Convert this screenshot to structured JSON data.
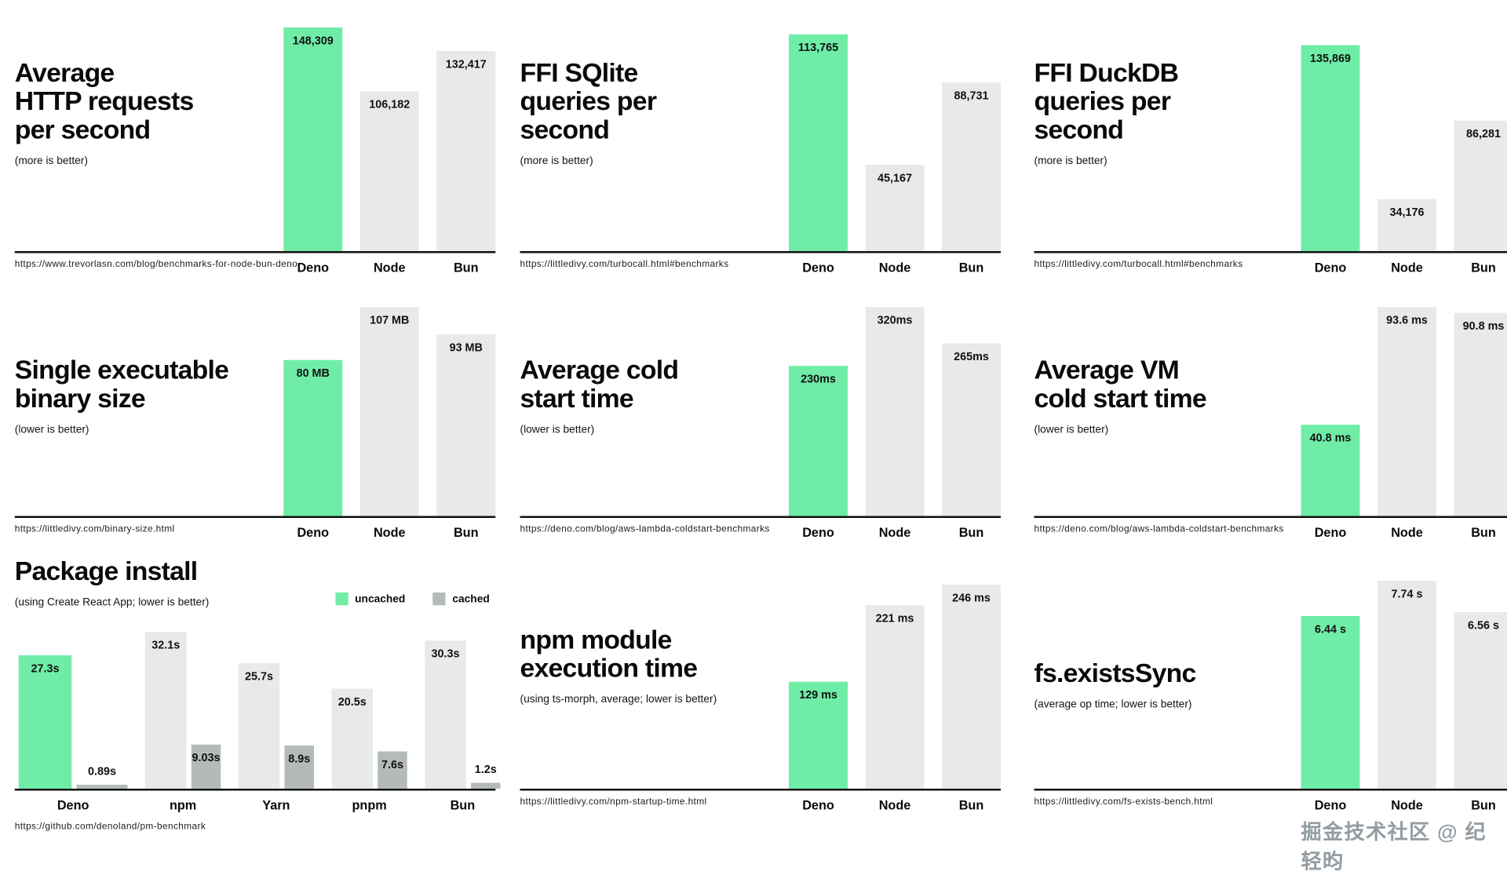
{
  "watermark": "掘金技术社区 @ 纪轻昀",
  "colors": {
    "accent": "#6FEDA7",
    "bar_gray": "#E8EAEA",
    "bar_cached": "#B4BAB8",
    "baseline": "#111111"
  },
  "chart_data": [
    {
      "name": "avg-http-requests",
      "type": "bar",
      "title_lines": [
        "Average",
        "HTTP requests",
        "per second"
      ],
      "subtitle": "(more is better)",
      "source": "https://www.trevorlasn.com/blog/benchmarks-for-node-bun-deno",
      "categories": [
        "Deno",
        "Node",
        "Bun"
      ],
      "values": [
        148309,
        106182,
        132417
      ],
      "value_labels": [
        "148,309",
        "106,182",
        "132,417"
      ],
      "highlight_index": 0
    },
    {
      "name": "ffi-sqlite-queries",
      "type": "bar",
      "title_lines": [
        "FFI SQlite",
        "queries per",
        "second"
      ],
      "subtitle": "(more is better)",
      "source": "https://littledivy.com/turbocall.html#benchmarks",
      "categories": [
        "Deno",
        "Node",
        "Bun"
      ],
      "values": [
        113765,
        45167,
        88731
      ],
      "value_labels": [
        "113,765",
        "45,167",
        "88,731"
      ],
      "highlight_index": 0
    },
    {
      "name": "ffi-duckdb-queries",
      "type": "bar",
      "title_lines": [
        "FFI DuckDB",
        "queries per",
        "second"
      ],
      "subtitle": "(more is better)",
      "source": "https://littledivy.com/turbocall.html#benchmarks",
      "categories": [
        "Deno",
        "Node",
        "Bun"
      ],
      "values": [
        135869,
        34176,
        86281
      ],
      "value_labels": [
        "135,869",
        "34,176",
        "86,281"
      ],
      "highlight_index": 0
    },
    {
      "name": "binary-size",
      "type": "bar",
      "title_lines": [
        "Single executable",
        "binary size"
      ],
      "subtitle": "(lower is better)",
      "source": "https://littledivy.com/binary-size.html",
      "categories": [
        "Deno",
        "Node",
        "Bun"
      ],
      "values": [
        80,
        107,
        93
      ],
      "value_labels": [
        "80 MB",
        "107 MB",
        "93 MB"
      ],
      "highlight_index": 0
    },
    {
      "name": "avg-cold-start",
      "type": "bar",
      "title_lines": [
        "Average cold",
        "start time"
      ],
      "subtitle": "(lower is better)",
      "source": "https://deno.com/blog/aws-lambda-coldstart-benchmarks",
      "categories": [
        "Deno",
        "Node",
        "Bun"
      ],
      "values": [
        230,
        320,
        265
      ],
      "value_labels": [
        "230ms",
        "320ms",
        "265ms"
      ],
      "highlight_index": 0
    },
    {
      "name": "avg-vm-cold-start",
      "type": "bar",
      "title_lines": [
        "Average VM",
        "cold start time"
      ],
      "subtitle": "(lower is better)",
      "source": "https://deno.com/blog/aws-lambda-coldstart-benchmarks",
      "categories": [
        "Deno",
        "Node",
        "Bun"
      ],
      "values": [
        40.8,
        93.6,
        90.8
      ],
      "value_labels": [
        "40.8 ms",
        "93.6 ms",
        "90.8 ms"
      ],
      "highlight_index": 0
    },
    {
      "name": "package-install",
      "type": "grouped-bar",
      "title_lines": [
        "Package install"
      ],
      "subtitle": "(using Create React App; lower is better)",
      "source": "https://github.com/denoland/pm-benchmark",
      "categories": [
        "Deno",
        "npm",
        "Yarn",
        "pnpm",
        "Bun"
      ],
      "legend": [
        {
          "label": "uncached"
        },
        {
          "label": "cached"
        }
      ],
      "series": [
        {
          "name": "uncached",
          "values": [
            27.3,
            32.1,
            25.7,
            20.5,
            30.3
          ],
          "labels": [
            "27.3s",
            "32.1s",
            "25.7s",
            "20.5s",
            "30.3s"
          ]
        },
        {
          "name": "cached",
          "values": [
            0.89,
            9.03,
            8.9,
            7.6,
            1.2
          ],
          "labels": [
            "0.89s",
            "9.03s",
            "8.9s",
            "7.6s",
            "1.2s"
          ]
        }
      ],
      "highlight_index": 0
    },
    {
      "name": "npm-module-execution",
      "type": "bar",
      "title_lines": [
        "npm module",
        "execution time"
      ],
      "subtitle": "(using ts-morph, average; lower is better)",
      "source": "https://littledivy.com/npm-startup-time.html",
      "categories": [
        "Deno",
        "Node",
        "Bun"
      ],
      "values": [
        129,
        221,
        246
      ],
      "value_labels": [
        "129 ms",
        "221 ms",
        "246 ms"
      ],
      "highlight_index": 0
    },
    {
      "name": "fs-existssync",
      "type": "bar",
      "title_lines": [
        "fs.existsSync"
      ],
      "subtitle": "(average op time; lower is better)",
      "source": "https://littledivy.com/fs-exists-bench.html",
      "categories": [
        "Deno",
        "Node",
        "Bun"
      ],
      "values": [
        6.44,
        7.74,
        6.56
      ],
      "value_labels": [
        "6.44 s",
        "7.74 s",
        "6.56 s"
      ],
      "highlight_index": 0
    }
  ]
}
